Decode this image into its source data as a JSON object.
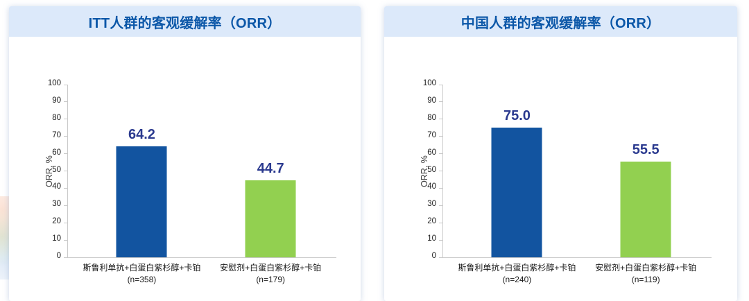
{
  "colors": {
    "header_band_bg": "#dce9fa",
    "title_text": "#0b57a8",
    "bar_blue": "#1254a0",
    "bar_green": "#92d050",
    "value_label": "#2b3a8f",
    "axis_line": "#c9c9c9"
  },
  "chart_data": [
    {
      "type": "bar",
      "title": "ITT人群的客观缓解率（ORR）",
      "ylabel": "ORR, %",
      "ylim": [
        0,
        100
      ],
      "ytick_step": 10,
      "grid": false,
      "categories": [
        "斯鲁利单抗+白蛋白紫杉醇+卡铂",
        "安慰剂+白蛋白紫杉醇+卡铂"
      ],
      "sample_sizes": [
        "(n=358)",
        "(n=179)"
      ],
      "values": [
        64.2,
        44.7
      ],
      "value_labels": [
        "64.2",
        "44.7"
      ],
      "bar_colors": [
        "#1254a0",
        "#92d050"
      ],
      "value_label_color": "#2b3a8f"
    },
    {
      "type": "bar",
      "title": "中国人群的客观缓解率（ORR）",
      "ylabel": "ORR, %",
      "ylim": [
        0,
        100
      ],
      "ytick_step": 10,
      "grid": false,
      "categories": [
        "斯鲁利单抗+白蛋白紫杉醇+卡铂",
        "安慰剂+白蛋白紫杉醇+卡铂"
      ],
      "sample_sizes": [
        "(n=240)",
        "(n=119)"
      ],
      "values": [
        75.0,
        55.5
      ],
      "value_labels": [
        "75.0",
        "55.5"
      ],
      "bar_colors": [
        "#1254a0",
        "#92d050"
      ],
      "value_label_color": "#2b3a8f"
    }
  ]
}
